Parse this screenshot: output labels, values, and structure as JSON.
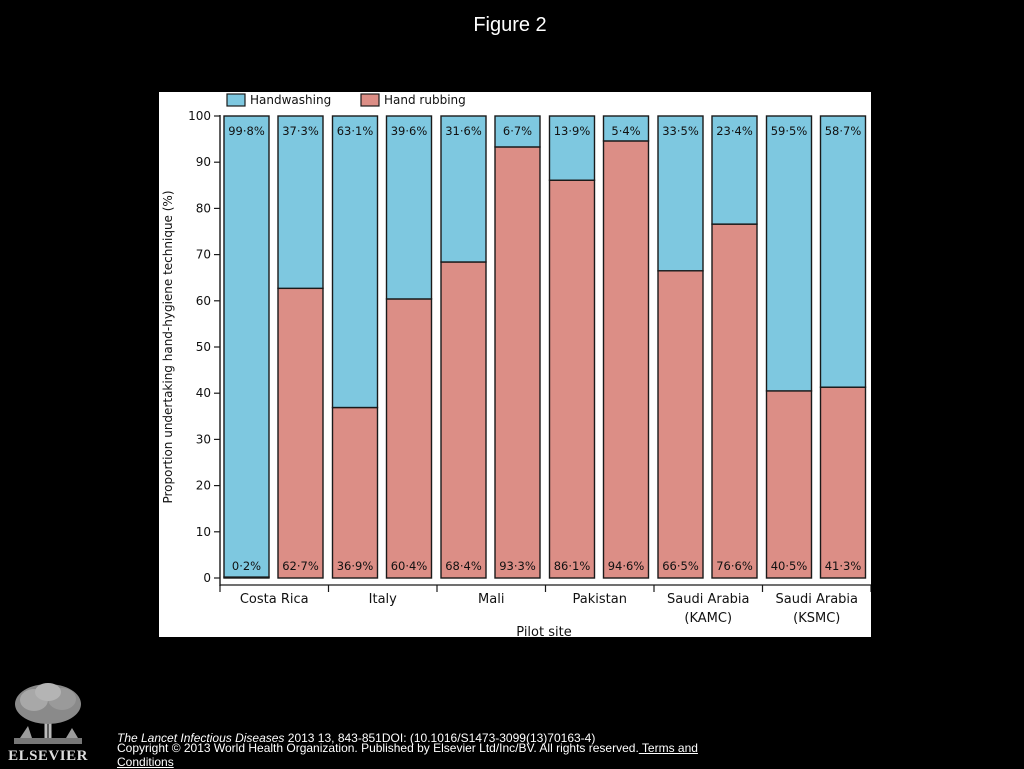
{
  "slide": {
    "title": "Figure 2"
  },
  "footer": {
    "journal": "The Lancet Infectious Diseases",
    "citation": " 2013 13, 843-851DOI: (10.1016/S1473-3099(13)70163-4)",
    "copyright": "Copyright © 2013 World Health Organization. Published by Elsevier Ltd/Inc/BV. All rights reserved.",
    "terms_link": " Terms and Conditions",
    "logo_text": "ELSEVIER"
  },
  "colors": {
    "handwashing": "#7ec8e0",
    "hand_rubbing": "#dc8e86",
    "outline": "#1a1a1a"
  },
  "chart_data": {
    "type": "bar",
    "stacked": true,
    "title": "",
    "xlabel": "Pilot site",
    "ylabel": "Proportion undertaking hand-hygiene technique (%)",
    "ylim": [
      0,
      100
    ],
    "yticks": [
      "0",
      "10",
      "20",
      "30",
      "40",
      "50",
      "60",
      "70",
      "80",
      "90",
      "100"
    ],
    "legend": {
      "position": "top-left",
      "entries": [
        "Handwashing",
        "Hand rubbing"
      ]
    },
    "sites": [
      "Costa Rica",
      "Italy",
      "Mali",
      "Pakistan",
      "Saudi Arabia\n(KAMC)",
      "Saudi Arabia\n(KSMC)"
    ],
    "bars_per_site": 2,
    "series": [
      {
        "name": "Hand rubbing",
        "values": [
          0.2,
          62.7,
          36.9,
          60.4,
          68.4,
          93.3,
          86.1,
          94.6,
          66.5,
          76.6,
          40.5,
          41.3
        ],
        "labels": [
          "0·2%",
          "62·7%",
          "36·9%",
          "60·4%",
          "68·4%",
          "93·3%",
          "86·1%",
          "94·6%",
          "66·5%",
          "76·6%",
          "40·5%",
          "41·3%"
        ]
      },
      {
        "name": "Handwashing",
        "values": [
          99.8,
          37.3,
          63.1,
          39.6,
          31.6,
          6.7,
          13.9,
          5.4,
          33.5,
          23.4,
          59.5,
          58.7
        ],
        "labels": [
          "99·8%",
          "37·3%",
          "63·1%",
          "39·6%",
          "31·6%",
          "6·7%",
          "13·9%",
          "5·4%",
          "33·5%",
          "23·4%",
          "59·5%",
          "58·7%"
        ]
      }
    ]
  }
}
